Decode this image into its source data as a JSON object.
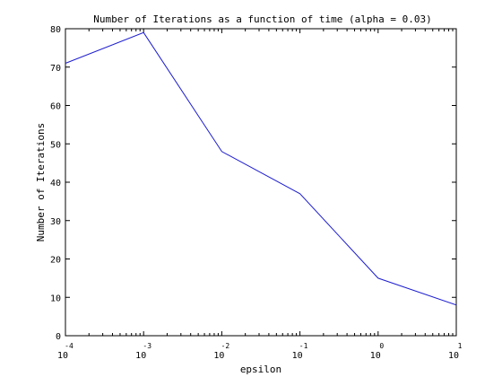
{
  "chart_data": {
    "type": "line",
    "title": "Number of Iterations as a function of time (alpha = 0.03)",
    "xlabel": "epsilon",
    "ylabel": "Number of Iterations",
    "x_scale": "log",
    "xlim": [
      0.0001,
      10
    ],
    "ylim": [
      0,
      80
    ],
    "x_ticks": [
      {
        "base": "10",
        "exp": "-4"
      },
      {
        "base": "10",
        "exp": "-3"
      },
      {
        "base": "10",
        "exp": "-2"
      },
      {
        "base": "10",
        "exp": "-1"
      },
      {
        "base": "10",
        "exp": "0"
      },
      {
        "base": "10",
        "exp": "1"
      }
    ],
    "y_ticks": [
      "0",
      "10",
      "20",
      "30",
      "40",
      "50",
      "60",
      "70",
      "80"
    ],
    "grid": false,
    "series": [
      {
        "x": [
          0.0001,
          0.001,
          0.01,
          0.1,
          1,
          10
        ],
        "y": [
          71,
          79,
          48,
          37,
          15,
          8
        ],
        "color": "#1f1fcf"
      }
    ]
  }
}
